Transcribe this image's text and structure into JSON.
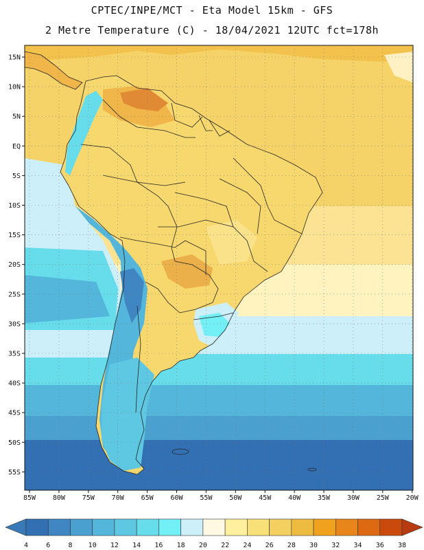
{
  "header": {
    "title_line1": "CPTEC/INPE/MCT -  Eta Model 15km - GFS",
    "title_line2": "2 Metre Temperature (C) - 18/04/2021 12UTC fct=178h"
  },
  "map": {
    "lat_labels": [
      "15N",
      "10N",
      "5N",
      "EQ",
      "5S",
      "10S",
      "15S",
      "20S",
      "25S",
      "30S",
      "35S",
      "40S",
      "45S",
      "50S",
      "55S"
    ],
    "lon_labels": [
      "85W",
      "80W",
      "75W",
      "70W",
      "65W",
      "60W",
      "55W",
      "50W",
      "45W",
      "40W",
      "35W",
      "30W",
      "25W",
      "20W"
    ]
  },
  "colorbar": {
    "labels": [
      "4",
      "6",
      "8",
      "10",
      "12",
      "14",
      "16",
      "18",
      "20",
      "22",
      "24",
      "26",
      "28",
      "30",
      "32",
      "34",
      "36",
      "38"
    ],
    "low_color": "#3a79b8",
    "high_color": "#b83a10",
    "colors": [
      "#3370b3",
      "#3f86c2",
      "#4aa0cf",
      "#53b6da",
      "#5ec8e2",
      "#67dceb",
      "#73f0f6",
      "#cdeff9",
      "#fff9e3",
      "#fff0a0",
      "#f8e078",
      "#f3d060",
      "#edbb3f",
      "#f0a21e",
      "#e9861b",
      "#dd6a12",
      "#c94a0c"
    ]
  }
}
